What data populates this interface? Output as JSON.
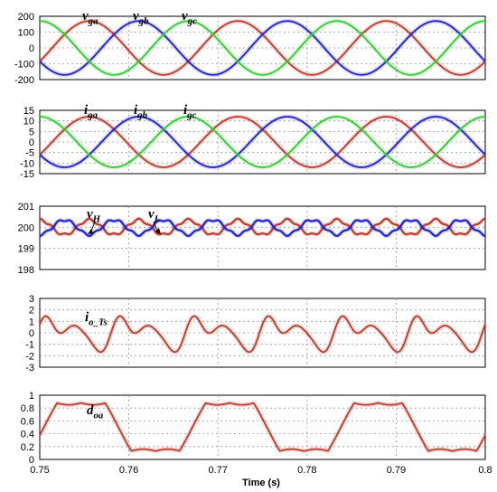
{
  "chart_data": [
    {
      "type": "line",
      "annotations": [
        "vga",
        "vgb",
        "vgc"
      ],
      "series": [
        {
          "name": "vga",
          "color": "#c0392b",
          "waveform": "sine",
          "amplitude": 170,
          "frequency_hz": 60,
          "phase_deg": -30
        },
        {
          "name": "vgb",
          "color": "#1f1fd6",
          "waveform": "sine",
          "amplitude": 170,
          "frequency_hz": 60,
          "phase_deg": -150
        },
        {
          "name": "vgc",
          "color": "#33cc33",
          "waveform": "sine",
          "amplitude": 170,
          "frequency_hz": 60,
          "phase_deg": 90
        }
      ],
      "xlim": [
        0.75,
        0.8
      ],
      "ylim": [
        -200,
        200
      ],
      "yticks": [
        -200,
        -100,
        0,
        100,
        200
      ],
      "grid": true
    },
    {
      "type": "line",
      "annotations": [
        "iga",
        "igb",
        "igc"
      ],
      "series": [
        {
          "name": "iga",
          "color": "#c0392b",
          "waveform": "sine",
          "amplitude": 12,
          "frequency_hz": 60,
          "phase_deg": -30
        },
        {
          "name": "igb",
          "color": "#1f1fd6",
          "waveform": "sine",
          "amplitude": 12,
          "frequency_hz": 60,
          "phase_deg": -150
        },
        {
          "name": "igc",
          "color": "#33cc33",
          "waveform": "sine",
          "amplitude": 12,
          "frequency_hz": 60,
          "phase_deg": 90
        }
      ],
      "xlim": [
        0.75,
        0.8
      ],
      "ylim": [
        -15,
        15
      ],
      "yticks": [
        -15,
        -10,
        -5,
        0,
        5,
        10,
        15
      ],
      "grid": true
    },
    {
      "type": "line",
      "annotations": [
        "vH",
        "vL"
      ],
      "series": [
        {
          "name": "vH",
          "color": "#c0392b",
          "waveform": "ripple",
          "offset": 200,
          "amplitude": 0.35,
          "frequency_hz": 180,
          "phase_deg": 90
        },
        {
          "name": "vL",
          "color": "#1f1fd6",
          "waveform": "ripple",
          "offset": 200,
          "amplitude": 0.35,
          "frequency_hz": 180,
          "phase_deg": -90
        }
      ],
      "xlim": [
        0.75,
        0.8
      ],
      "ylim": [
        198,
        201
      ],
      "yticks": [
        198,
        199,
        200,
        201
      ],
      "grid": true
    },
    {
      "type": "line",
      "annotations": [
        "io_Ts"
      ],
      "series": [
        {
          "name": "io_Ts",
          "color": "#c0392b",
          "waveform": "harmonic",
          "amplitude": 1.7,
          "fundamental_hz": 120
        }
      ],
      "xlim": [
        0.75,
        0.8
      ],
      "ylim": [
        -3,
        3
      ],
      "yticks": [
        -3,
        -2,
        -1,
        0,
        1,
        2,
        3
      ],
      "grid": true
    },
    {
      "type": "line",
      "annotations": [
        "doa"
      ],
      "series": [
        {
          "name": "doa",
          "color": "#c0392b",
          "waveform": "duty",
          "low": 0.13,
          "high": 0.88,
          "frequency_hz": 60
        }
      ],
      "xlim": [
        0.75,
        0.8
      ],
      "ylim": [
        0,
        1
      ],
      "yticks": [
        0,
        0.2,
        0.4,
        0.6,
        0.8,
        1
      ],
      "xticks": [
        0.75,
        0.76,
        0.77,
        0.78,
        0.79,
        0.8
      ],
      "xlabel": "Time (s)",
      "grid": true
    }
  ]
}
